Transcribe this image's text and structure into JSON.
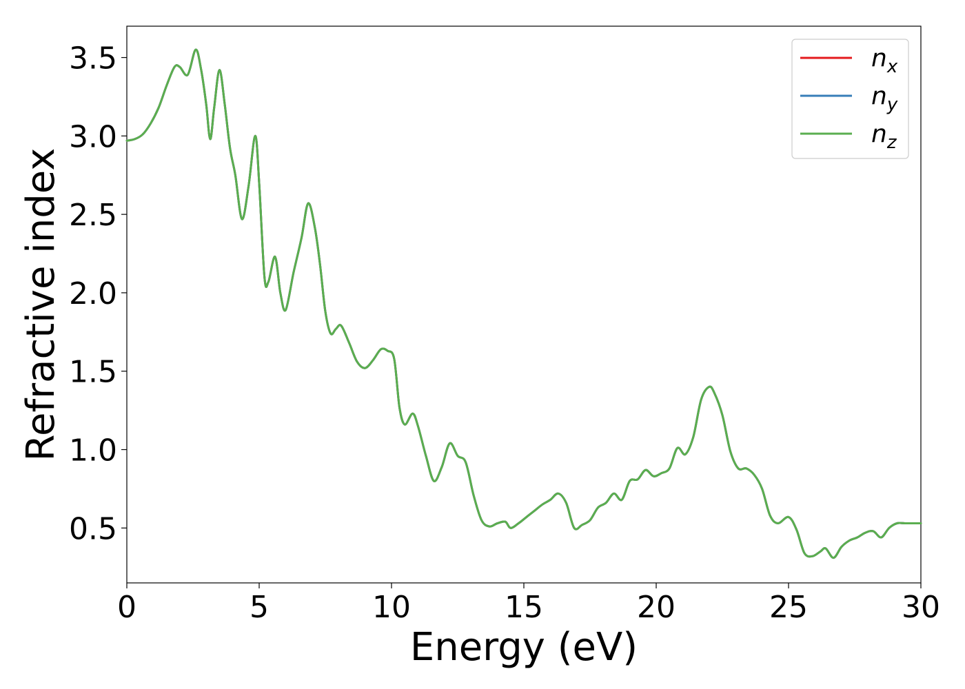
{
  "chart_data": {
    "type": "line",
    "title": "",
    "xlabel": "Energy (eV)",
    "ylabel": "Refractive index",
    "xlim": [
      0,
      30
    ],
    "ylim": [
      0.15,
      3.7
    ],
    "xticks": [
      0,
      5,
      10,
      15,
      20,
      25,
      30
    ],
    "xtick_labels": [
      "0",
      "5",
      "10",
      "15",
      "20",
      "25",
      "30"
    ],
    "yticks": [
      0.5,
      1.0,
      1.5,
      2.0,
      2.5,
      3.0,
      3.5
    ],
    "ytick_labels": [
      "0.5",
      "1.0",
      "1.5",
      "2.0",
      "2.5",
      "3.0",
      "3.5"
    ],
    "grid": false,
    "legend_position": "top-right",
    "series": [
      {
        "name": "n_x",
        "label_base": "n",
        "label_sub": "x",
        "color": "#e41a1c",
        "x": [
          0,
          0.3,
          0.6,
          0.9,
          1.2,
          1.5,
          1.8,
          2.0,
          2.3,
          2.6,
          2.8,
          3.0,
          3.15,
          3.3,
          3.5,
          3.7,
          3.9,
          4.1,
          4.35,
          4.6,
          4.85,
          5.0,
          5.2,
          5.35,
          5.6,
          5.8,
          6.0,
          6.3,
          6.6,
          6.85,
          7.1,
          7.3,
          7.5,
          7.7,
          7.9,
          8.1,
          8.4,
          8.7,
          9.0,
          9.3,
          9.6,
          9.85,
          10.1,
          10.3,
          10.5,
          10.8,
          11.0,
          11.3,
          11.6,
          11.9,
          12.2,
          12.5,
          12.8,
          13.1,
          13.4,
          13.7,
          14.0,
          14.3,
          14.5,
          14.8,
          15.1,
          15.4,
          15.7,
          16.0,
          16.3,
          16.6,
          16.9,
          17.2,
          17.5,
          17.8,
          18.1,
          18.4,
          18.7,
          19.0,
          19.3,
          19.6,
          19.9,
          20.2,
          20.5,
          20.8,
          21.1,
          21.4,
          21.7,
          22.0,
          22.2,
          22.5,
          22.8,
          23.1,
          23.4,
          23.7,
          24.0,
          24.3,
          24.6,
          25.0,
          25.3,
          25.6,
          25.9,
          26.2,
          26.4,
          26.7,
          27.0,
          27.3,
          27.6,
          27.9,
          28.2,
          28.5,
          28.8,
          29.1,
          29.4,
          29.7,
          30.0
        ],
        "values": [
          2.97,
          2.98,
          3.01,
          3.08,
          3.18,
          3.32,
          3.44,
          3.44,
          3.39,
          3.55,
          3.43,
          3.2,
          2.98,
          3.18,
          3.42,
          3.2,
          2.92,
          2.75,
          2.47,
          2.68,
          3.0,
          2.7,
          2.1,
          2.07,
          2.23,
          2.0,
          1.89,
          2.13,
          2.35,
          2.57,
          2.42,
          2.18,
          1.88,
          1.74,
          1.77,
          1.79,
          1.68,
          1.56,
          1.52,
          1.57,
          1.64,
          1.63,
          1.58,
          1.27,
          1.16,
          1.23,
          1.15,
          0.96,
          0.8,
          0.89,
          1.04,
          0.96,
          0.92,
          0.71,
          0.55,
          0.51,
          0.53,
          0.54,
          0.5,
          0.53,
          0.57,
          0.61,
          0.65,
          0.68,
          0.72,
          0.66,
          0.5,
          0.52,
          0.55,
          0.63,
          0.66,
          0.72,
          0.68,
          0.8,
          0.81,
          0.87,
          0.83,
          0.85,
          0.88,
          1.01,
          0.97,
          1.08,
          1.32,
          1.4,
          1.36,
          1.22,
          0.99,
          0.88,
          0.88,
          0.84,
          0.75,
          0.58,
          0.53,
          0.57,
          0.49,
          0.34,
          0.32,
          0.35,
          0.37,
          0.31,
          0.38,
          0.42,
          0.44,
          0.47,
          0.48,
          0.44,
          0.5,
          0.53,
          0.53,
          0.53,
          0.53
        ]
      },
      {
        "name": "n_y",
        "label_base": "n",
        "label_sub": "y",
        "color": "#377eb8",
        "x": [
          0,
          0.3,
          0.6,
          0.9,
          1.2,
          1.5,
          1.8,
          2.0,
          2.3,
          2.6,
          2.8,
          3.0,
          3.15,
          3.3,
          3.5,
          3.7,
          3.9,
          4.1,
          4.35,
          4.6,
          4.85,
          5.0,
          5.2,
          5.35,
          5.6,
          5.8,
          6.0,
          6.3,
          6.6,
          6.85,
          7.1,
          7.3,
          7.5,
          7.7,
          7.9,
          8.1,
          8.4,
          8.7,
          9.0,
          9.3,
          9.6,
          9.85,
          10.1,
          10.3,
          10.5,
          10.8,
          11.0,
          11.3,
          11.6,
          11.9,
          12.2,
          12.5,
          12.8,
          13.1,
          13.4,
          13.7,
          14.0,
          14.3,
          14.5,
          14.8,
          15.1,
          15.4,
          15.7,
          16.0,
          16.3,
          16.6,
          16.9,
          17.2,
          17.5,
          17.8,
          18.1,
          18.4,
          18.7,
          19.0,
          19.3,
          19.6,
          19.9,
          20.2,
          20.5,
          20.8,
          21.1,
          21.4,
          21.7,
          22.0,
          22.2,
          22.5,
          22.8,
          23.1,
          23.4,
          23.7,
          24.0,
          24.3,
          24.6,
          25.0,
          25.3,
          25.6,
          25.9,
          26.2,
          26.4,
          26.7,
          27.0,
          27.3,
          27.6,
          27.9,
          28.2,
          28.5,
          28.8,
          29.1,
          29.4,
          29.7,
          30.0
        ],
        "values": [
          2.97,
          2.98,
          3.01,
          3.08,
          3.18,
          3.32,
          3.44,
          3.44,
          3.39,
          3.55,
          3.43,
          3.2,
          2.98,
          3.18,
          3.42,
          3.2,
          2.92,
          2.75,
          2.47,
          2.68,
          3.0,
          2.7,
          2.1,
          2.07,
          2.23,
          2.0,
          1.89,
          2.13,
          2.35,
          2.57,
          2.42,
          2.18,
          1.88,
          1.74,
          1.77,
          1.79,
          1.68,
          1.56,
          1.52,
          1.57,
          1.64,
          1.63,
          1.58,
          1.27,
          1.16,
          1.23,
          1.15,
          0.96,
          0.8,
          0.89,
          1.04,
          0.96,
          0.92,
          0.71,
          0.55,
          0.51,
          0.53,
          0.54,
          0.5,
          0.53,
          0.57,
          0.61,
          0.65,
          0.68,
          0.72,
          0.66,
          0.5,
          0.52,
          0.55,
          0.63,
          0.66,
          0.72,
          0.68,
          0.8,
          0.81,
          0.87,
          0.83,
          0.85,
          0.88,
          1.01,
          0.97,
          1.08,
          1.32,
          1.4,
          1.36,
          1.22,
          0.99,
          0.88,
          0.88,
          0.84,
          0.75,
          0.58,
          0.53,
          0.57,
          0.49,
          0.34,
          0.32,
          0.35,
          0.37,
          0.31,
          0.38,
          0.42,
          0.44,
          0.47,
          0.48,
          0.44,
          0.5,
          0.53,
          0.53,
          0.53,
          0.53
        ]
      },
      {
        "name": "n_z",
        "label_base": "n",
        "label_sub": "z",
        "color": "#5aae4f",
        "x": [
          0,
          0.3,
          0.6,
          0.9,
          1.2,
          1.5,
          1.8,
          2.0,
          2.3,
          2.6,
          2.8,
          3.0,
          3.15,
          3.3,
          3.5,
          3.7,
          3.9,
          4.1,
          4.35,
          4.6,
          4.85,
          5.0,
          5.2,
          5.35,
          5.6,
          5.8,
          6.0,
          6.3,
          6.6,
          6.85,
          7.1,
          7.3,
          7.5,
          7.7,
          7.9,
          8.1,
          8.4,
          8.7,
          9.0,
          9.3,
          9.6,
          9.85,
          10.1,
          10.3,
          10.5,
          10.8,
          11.0,
          11.3,
          11.6,
          11.9,
          12.2,
          12.5,
          12.8,
          13.1,
          13.4,
          13.7,
          14.0,
          14.3,
          14.5,
          14.8,
          15.1,
          15.4,
          15.7,
          16.0,
          16.3,
          16.6,
          16.9,
          17.2,
          17.5,
          17.8,
          18.1,
          18.4,
          18.7,
          19.0,
          19.3,
          19.6,
          19.9,
          20.2,
          20.5,
          20.8,
          21.1,
          21.4,
          21.7,
          22.0,
          22.2,
          22.5,
          22.8,
          23.1,
          23.4,
          23.7,
          24.0,
          24.3,
          24.6,
          25.0,
          25.3,
          25.6,
          25.9,
          26.2,
          26.4,
          26.7,
          27.0,
          27.3,
          27.6,
          27.9,
          28.2,
          28.5,
          28.8,
          29.1,
          29.4,
          29.7,
          30.0
        ],
        "values": [
          2.97,
          2.98,
          3.01,
          3.08,
          3.18,
          3.32,
          3.44,
          3.44,
          3.39,
          3.55,
          3.43,
          3.2,
          2.98,
          3.18,
          3.42,
          3.2,
          2.92,
          2.75,
          2.47,
          2.68,
          3.0,
          2.7,
          2.1,
          2.07,
          2.23,
          2.0,
          1.89,
          2.13,
          2.35,
          2.57,
          2.42,
          2.18,
          1.88,
          1.74,
          1.77,
          1.79,
          1.68,
          1.56,
          1.52,
          1.57,
          1.64,
          1.63,
          1.58,
          1.27,
          1.16,
          1.23,
          1.15,
          0.96,
          0.8,
          0.89,
          1.04,
          0.96,
          0.92,
          0.71,
          0.55,
          0.51,
          0.53,
          0.54,
          0.5,
          0.53,
          0.57,
          0.61,
          0.65,
          0.68,
          0.72,
          0.66,
          0.5,
          0.52,
          0.55,
          0.63,
          0.66,
          0.72,
          0.68,
          0.8,
          0.81,
          0.87,
          0.83,
          0.85,
          0.88,
          1.01,
          0.97,
          1.08,
          1.32,
          1.4,
          1.36,
          1.22,
          0.99,
          0.88,
          0.88,
          0.84,
          0.75,
          0.58,
          0.53,
          0.57,
          0.49,
          0.34,
          0.32,
          0.35,
          0.37,
          0.31,
          0.38,
          0.42,
          0.44,
          0.47,
          0.48,
          0.44,
          0.5,
          0.53,
          0.53,
          0.53,
          0.53
        ]
      }
    ]
  }
}
